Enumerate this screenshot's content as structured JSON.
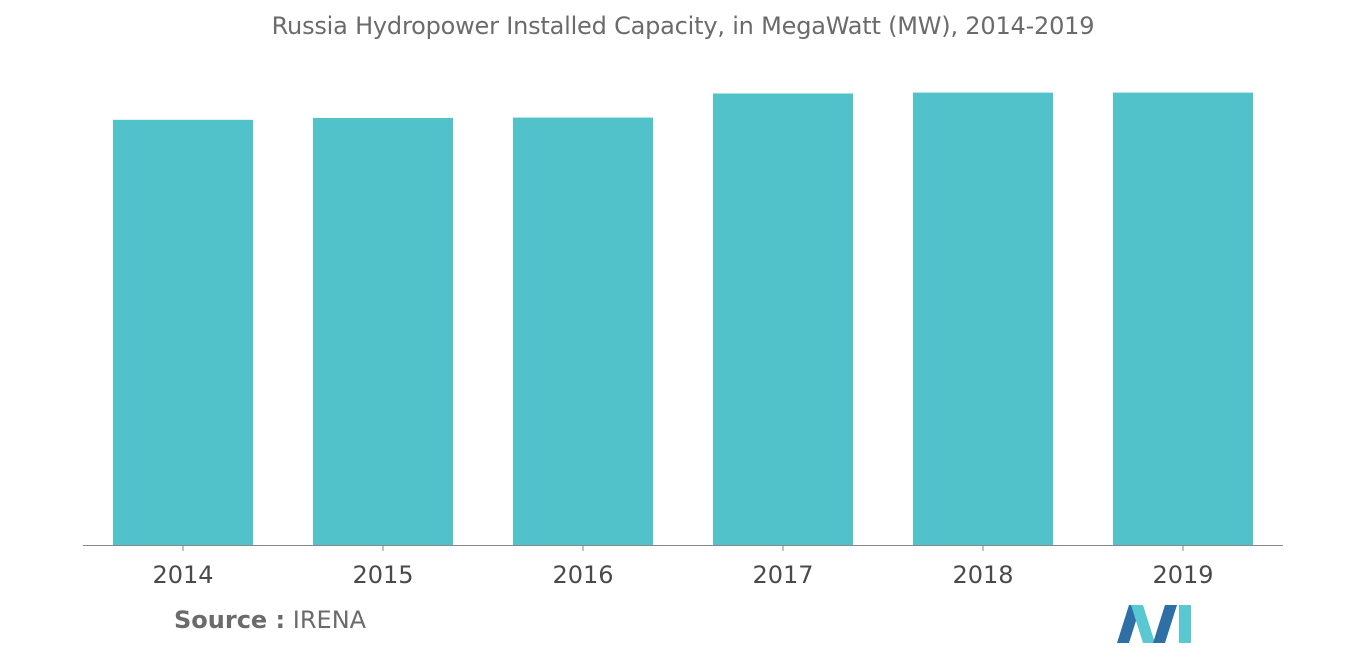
{
  "chart_data": {
    "type": "bar",
    "title": "Russia Hydropower Installed Capacity, in MegaWatt (MW), 2014-2019",
    "categories": [
      "2014",
      "2015",
      "2016",
      "2017",
      "2018",
      "2019"
    ],
    "series": [
      {
        "values": [
          47650,
          47860,
          47900,
          50600,
          50700,
          50700
        ]
      }
    ],
    "xlabel": "",
    "ylabel": "",
    "ylim": [
      0,
      52000
    ],
    "grid": false,
    "legend": "none",
    "bar_color": "#52c2ca",
    "axis_color": "#888888"
  },
  "source": {
    "label": "Source :",
    "value": "IRENA"
  },
  "logo": {
    "icon": "mordor-intelligence-logo-icon",
    "colors": [
      "#5ac8d0",
      "#2e6fa6"
    ]
  }
}
